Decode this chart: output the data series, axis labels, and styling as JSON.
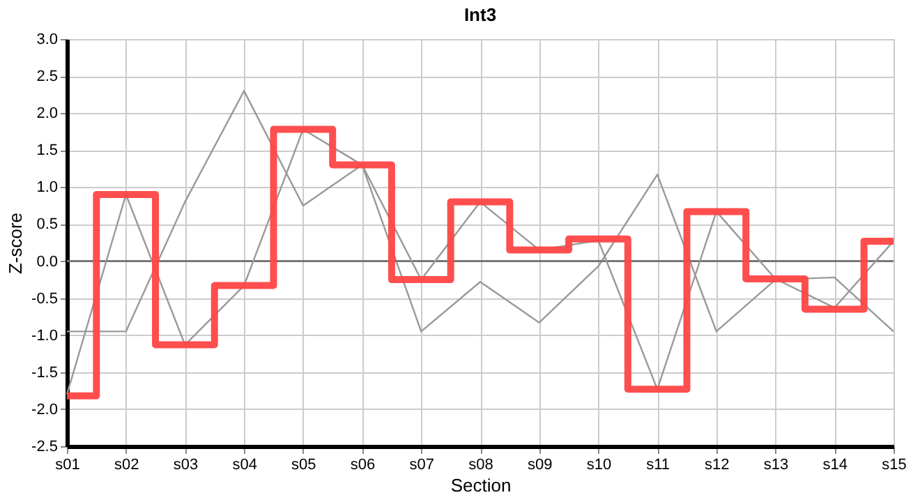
{
  "chart_data": {
    "type": "line",
    "title": "Int3",
    "xlabel": "Section",
    "ylabel": "Z-score",
    "categories": [
      "s01",
      "s02",
      "s03",
      "s04",
      "s05",
      "s06",
      "s07",
      "s08",
      "s09",
      "s10",
      "s11",
      "s12",
      "s13",
      "s14",
      "s15"
    ],
    "series": [
      {
        "type": "line",
        "color": "#999999",
        "values": [
          -0.95,
          -0.95,
          0.8,
          2.3,
          0.75,
          1.3,
          -0.95,
          -0.28,
          -0.83,
          -0.07,
          1.17,
          -0.95,
          -0.25,
          -0.22,
          -0.95
        ]
      },
      {
        "type": "line",
        "color": "#999999",
        "values": [
          -1.8,
          0.9,
          -1.13,
          -0.33,
          1.78,
          1.3,
          -0.25,
          0.8,
          0.15,
          0.28,
          -1.73,
          0.67,
          -0.24,
          -0.63,
          0.27
        ]
      },
      {
        "type": "step",
        "color": "#ff4444",
        "values": [
          -1.82,
          0.9,
          -1.13,
          -0.33,
          1.78,
          1.3,
          -0.25,
          0.8,
          0.15,
          0.3,
          -1.73,
          0.67,
          -0.24,
          -0.65,
          0.27
        ]
      }
    ],
    "ylim": [
      -2.5,
      3.0
    ],
    "yticks": [
      {
        "value": -2.5,
        "label": "-2.5"
      },
      {
        "value": -2,
        "label": "-2.0"
      },
      {
        "value": -1.5,
        "label": "-1.5"
      },
      {
        "value": -1,
        "label": "-1.0"
      },
      {
        "value": -0.5,
        "label": "-0.5"
      },
      {
        "value": 0,
        "label": "0.0"
      },
      {
        "value": 0.5,
        "label": "0.5"
      },
      {
        "value": 1,
        "label": "1.0"
      },
      {
        "value": 1.5,
        "label": "1.5"
      },
      {
        "value": 2,
        "label": "2.0"
      },
      {
        "value": 2.5,
        "label": "2.5"
      },
      {
        "value": 3,
        "label": "3.0"
      }
    ],
    "ref_lines": [
      {
        "axis": "y",
        "value": 0,
        "color": "#777777"
      }
    ],
    "grid": true,
    "marker": "none",
    "line_style": "solid"
  }
}
